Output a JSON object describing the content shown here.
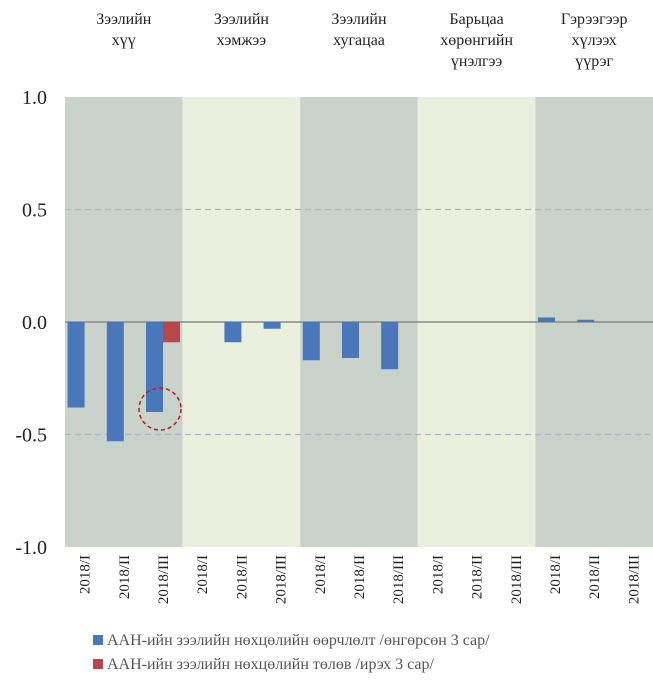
{
  "chart_data": {
    "type": "bar",
    "group_labels": [
      [
        "Зээлийн",
        "хүү"
      ],
      [
        "Зээлийн",
        "хэмжээ"
      ],
      [
        "Зээлийн",
        "хугацаа"
      ],
      [
        "Барьцаа",
        "хөрөнгийн",
        "үнэлгээ"
      ],
      [
        "Гэрээгээр",
        "хүлээх",
        "үүрэг"
      ]
    ],
    "categories": [
      "2018/I",
      "2018/II",
      "2018/III",
      "2018/I",
      "2018/II",
      "2018/III",
      "2018/I",
      "2018/II",
      "2018/III",
      "2018/I",
      "2018/II",
      "2018/III",
      "2018/I",
      "2018/II",
      "2018/III"
    ],
    "series": [
      {
        "name": "ААН-ийн зээлийн нөхцөлийн өөрчлөлт /өнгөрсөн 3 сар/",
        "color": "#4a77b9",
        "values": [
          -0.38,
          -0.53,
          -0.4,
          null,
          -0.09,
          -0.03,
          -0.17,
          -0.16,
          -0.21,
          null,
          null,
          null,
          0.02,
          0.01,
          null
        ]
      },
      {
        "name": "ААН-ийн зээлийн нөхцөлийн төлөв /ирэх 3 сар/",
        "color": "#b8474c",
        "values": [
          null,
          null,
          -0.09,
          null,
          null,
          null,
          null,
          null,
          null,
          null,
          null,
          null,
          null,
          null,
          null
        ]
      }
    ],
    "ylim": [
      -1.0,
      1.0
    ],
    "yticks": [
      {
        "value": -1.0,
        "label": "-1.0"
      },
      {
        "value": -0.5,
        "label": "-0.5"
      },
      {
        "value": 0,
        "label": "0.0"
      },
      {
        "value": 0.5,
        "label": "0.5"
      },
      {
        "value": 1.0,
        "label": "1.0"
      }
    ],
    "grid": true
  }
}
